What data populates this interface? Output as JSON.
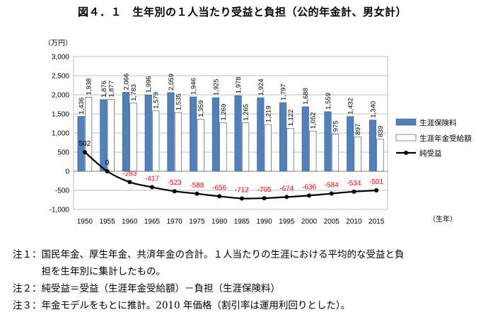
{
  "title": "図４．１　生年別の１人当たり受益と負担（公的年金計、男女計）",
  "chart_data": {
    "type": "bar",
    "unit_label": "（万円）",
    "xlabel_right": "（生年）",
    "categories": [
      "1950",
      "1955",
      "1960",
      "1965",
      "1970",
      "1975",
      "1980",
      "1985",
      "1990",
      "1995",
      "2000",
      "2005",
      "2010",
      "2015"
    ],
    "ylim": [
      -1000,
      3000
    ],
    "yticks": [
      "3,000",
      "2,500",
      "2,000",
      "1,500",
      "1,000",
      "500",
      "0",
      "-500",
      "-1,000"
    ],
    "ytick_values": [
      3000,
      2500,
      2000,
      1500,
      1000,
      500,
      0,
      -500,
      -1000
    ],
    "grid": true,
    "legend_position": "right",
    "series": [
      {
        "name": "生涯保険料",
        "kind": "bar",
        "color": "#4f81bd",
        "values": [
          1436,
          1876,
          2066,
          1996,
          2059,
          1946,
          1925,
          1978,
          1924,
          1797,
          1688,
          1559,
          1432,
          1340
        ],
        "labels": [
          "1,436",
          "1,876",
          "2,066",
          "1,996",
          "2,059",
          "1,946",
          "1,925",
          "1,978",
          "1,924",
          "1,797",
          "1,688",
          "1,559",
          "1,432",
          "1,340"
        ]
      },
      {
        "name": "生涯年金受給額",
        "kind": "bar",
        "color": "#ffffff",
        "values": [
          1938,
          1877,
          1783,
          1579,
          1535,
          1359,
          1269,
          1265,
          1219,
          1122,
          1052,
          975,
          897,
          839
        ],
        "labels": [
          "1,938",
          "1,877",
          "1,783",
          "1,579",
          "1,535",
          "1,359",
          "1,269",
          "1,265",
          "1,219",
          "1,122",
          "1,052",
          "975",
          "897",
          "839"
        ]
      },
      {
        "name": "純受益",
        "kind": "line",
        "color": "#000000",
        "values": [
          502,
          0,
          -283,
          -417,
          -523,
          -588,
          -656,
          -712,
          -705,
          -674,
          -636,
          -584,
          -534,
          -501
        ],
        "labels": [
          "502",
          "0",
          "-283",
          "-417",
          "-523",
          "-588",
          "-656",
          "-712",
          "-705",
          "-674",
          "-636",
          "-584",
          "-534",
          "-501"
        ],
        "positive_label_color": "#000000",
        "negative_label_color": "#ff0000"
      }
    ]
  },
  "notes": [
    "注１：国民年金、厚生年金、共済年金の合計。１人当たりの生涯における平均的な受益と負",
    "　　　担を生年別に集計したもの。",
    "注２：純受益＝受益（生涯年金受給額）－負担（生涯保険料）",
    "注３：年金モデルをもとに推計。2010 年価格（割引率は運用利回りとした）。"
  ]
}
